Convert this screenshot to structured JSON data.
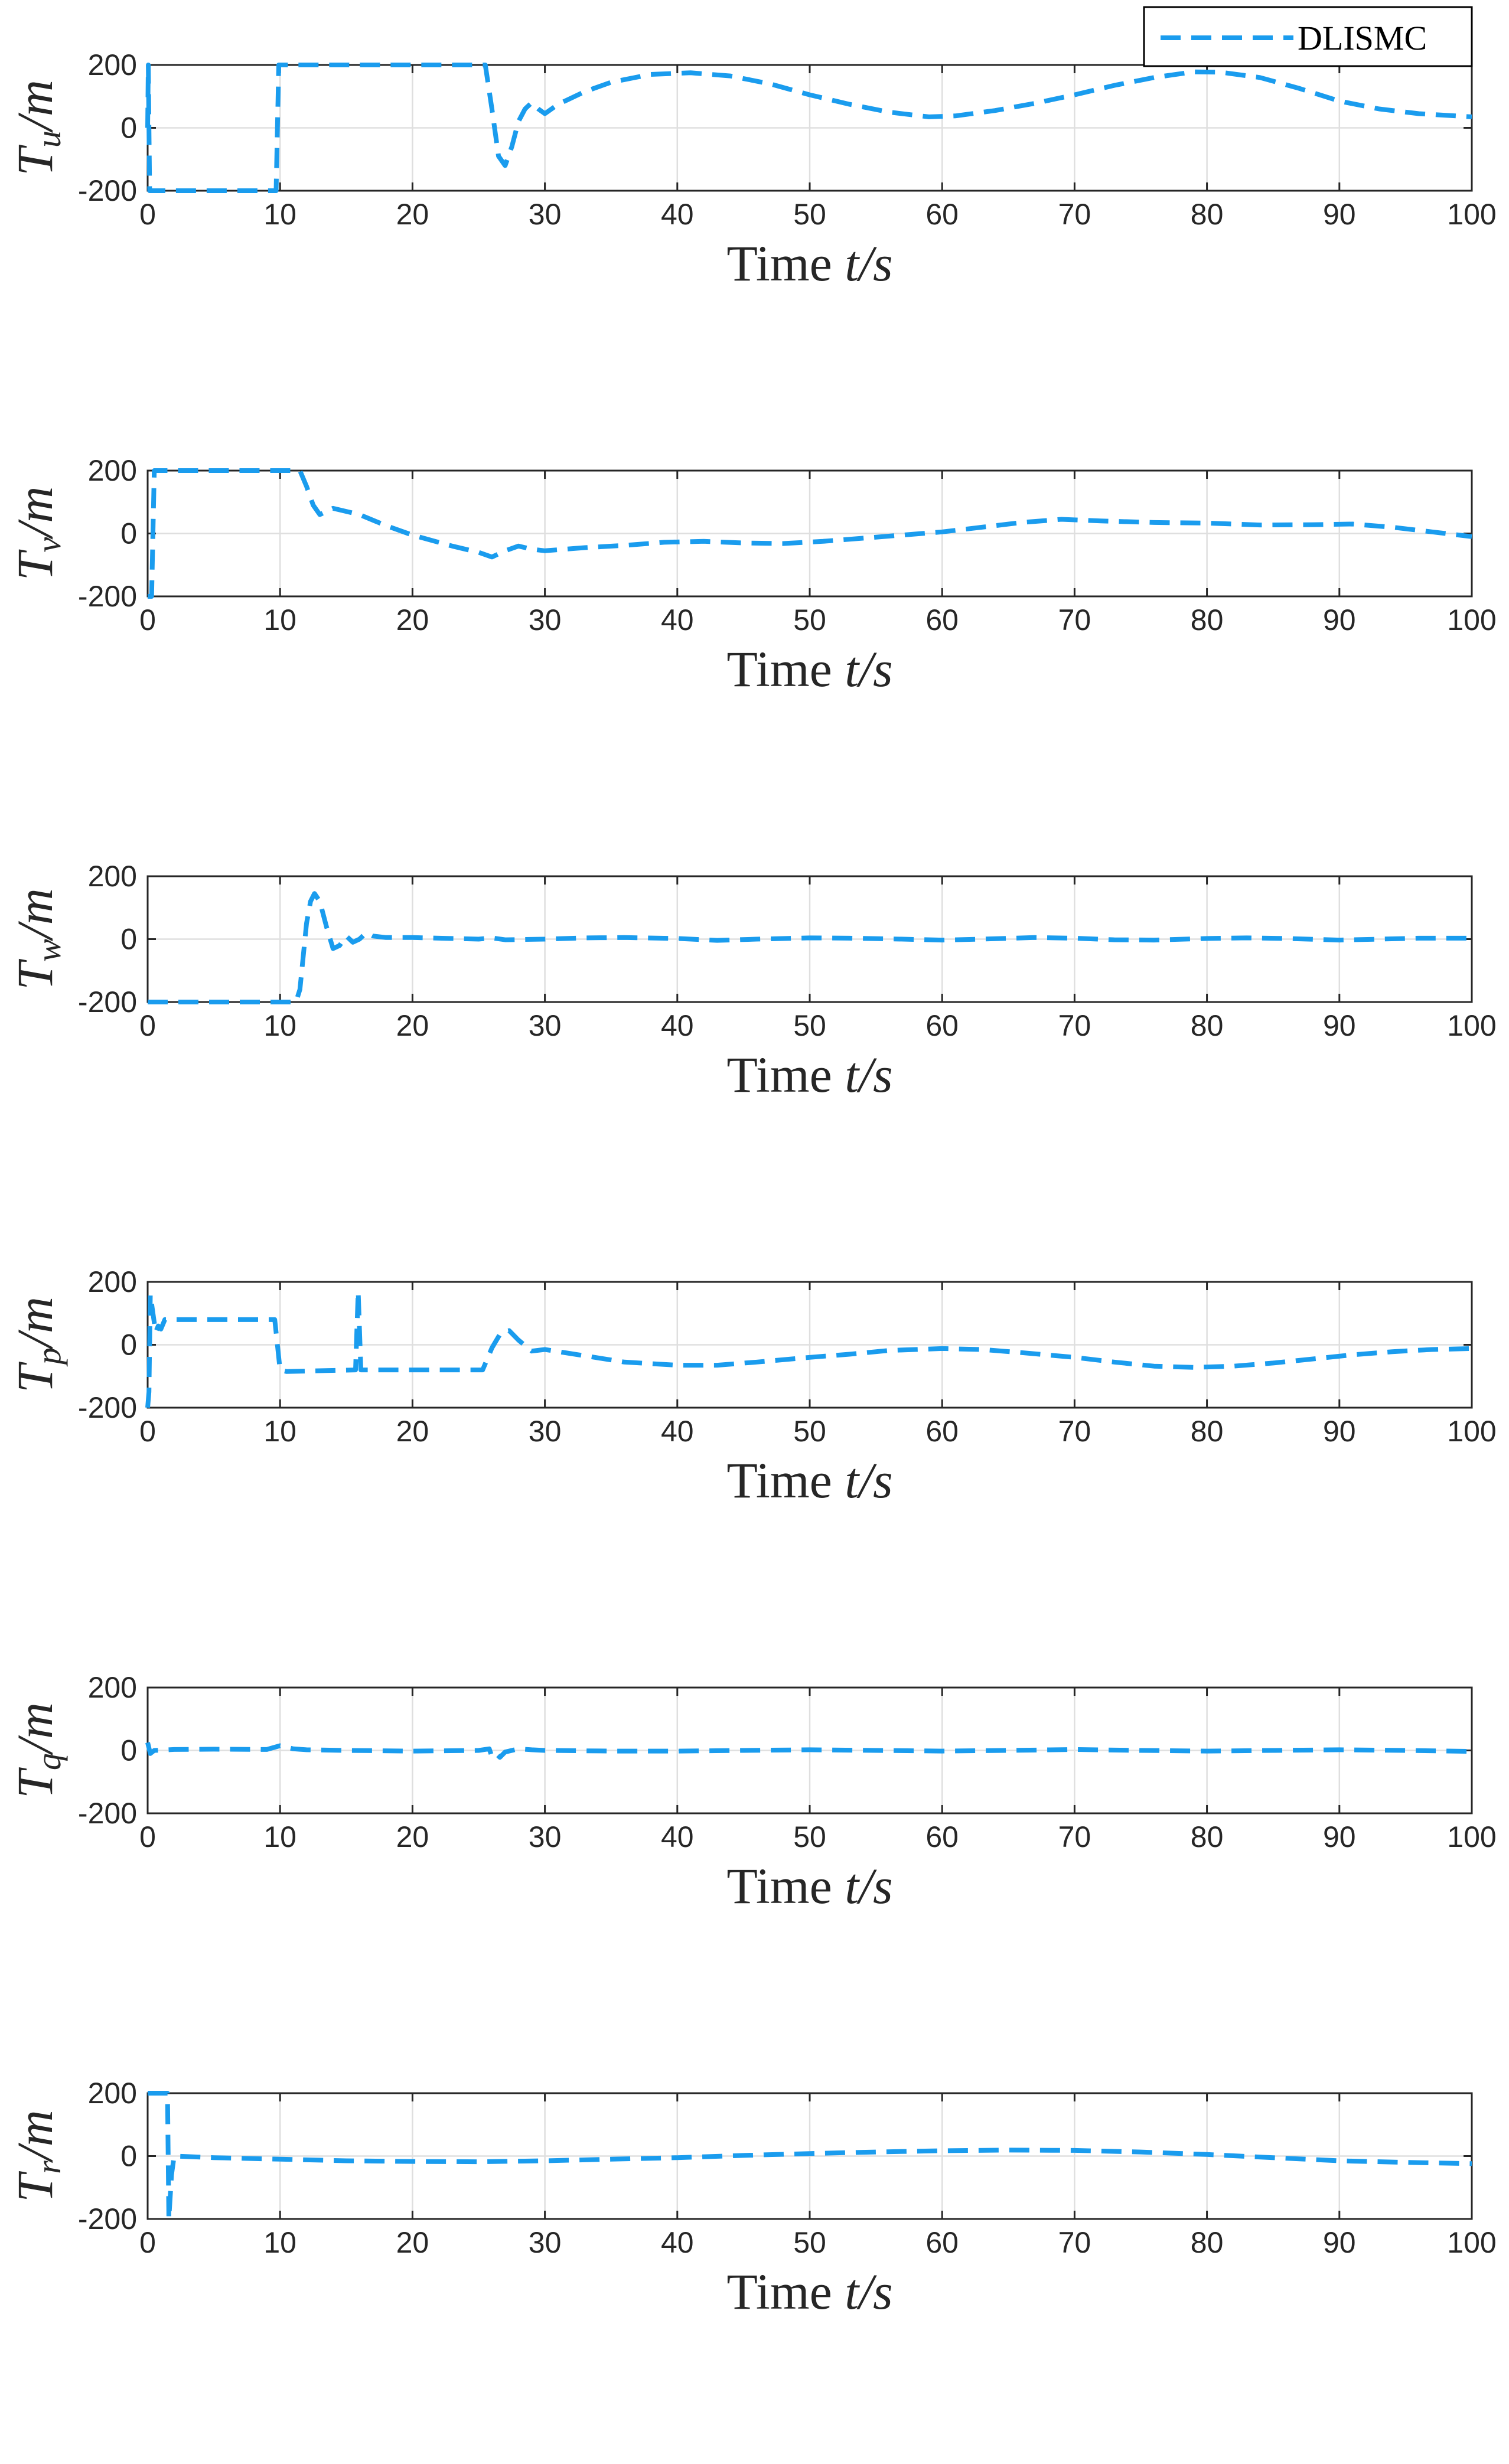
{
  "legend": {
    "label": "DLISMC",
    "location": "top-right"
  },
  "colors": {
    "series": "#1a9cee",
    "axes": "#262626",
    "grid": "#dfdfdf"
  },
  "chart_data": [
    {
      "type": "line",
      "ylabel_symbol": "T",
      "ylabel_sub": "u",
      "ylabel_tail": "/m",
      "xlabel_text": "Time ",
      "xlabel_var": "t/s",
      "xlim": [
        0,
        100
      ],
      "ylim": [
        -200,
        200
      ],
      "xticks": [
        "0",
        "10",
        "20",
        "30",
        "40",
        "50",
        "60",
        "70",
        "80",
        "90",
        "100"
      ],
      "yticks": [
        "200",
        "0",
        "-200"
      ],
      "grid": true,
      "series": [
        {
          "name": "DLISMC",
          "points": [
            [
              0,
              0
            ],
            [
              0.05,
              200
            ],
            [
              0.1,
              0
            ],
            [
              0.15,
              -200
            ],
            [
              9.7,
              -200
            ],
            [
              9.9,
              200
            ],
            [
              25.5,
              200
            ],
            [
              26,
              60
            ],
            [
              26.5,
              -90
            ],
            [
              27,
              -120
            ],
            [
              27.5,
              -60
            ],
            [
              28,
              20
            ],
            [
              28.5,
              60
            ],
            [
              29,
              80
            ],
            [
              29.5,
              60
            ],
            [
              30,
              45
            ],
            [
              31,
              75
            ],
            [
              33,
              115
            ],
            [
              35,
              145
            ],
            [
              38,
              170
            ],
            [
              41,
              175
            ],
            [
              44,
              165
            ],
            [
              47,
              140
            ],
            [
              50,
              105
            ],
            [
              53,
              75
            ],
            [
              56,
              50
            ],
            [
              59,
              35
            ],
            [
              61,
              38
            ],
            [
              64,
              55
            ],
            [
              67,
              78
            ],
            [
              70,
              105
            ],
            [
              73,
              135
            ],
            [
              76,
              160
            ],
            [
              79,
              178
            ],
            [
              81,
              177
            ],
            [
              84,
              160
            ],
            [
              87,
              125
            ],
            [
              90,
              85
            ],
            [
              93,
              60
            ],
            [
              96,
              45
            ],
            [
              100,
              35
            ]
          ]
        }
      ]
    },
    {
      "type": "line",
      "ylabel_symbol": "T",
      "ylabel_sub": "v",
      "ylabel_tail": "/m",
      "xlabel_text": "Time ",
      "xlabel_var": "t/s",
      "xlim": [
        0,
        100
      ],
      "ylim": [
        -200,
        200
      ],
      "xticks": [
        "0",
        "10",
        "20",
        "30",
        "40",
        "50",
        "60",
        "70",
        "80",
        "90",
        "100"
      ],
      "yticks": [
        "200",
        "0",
        "-200"
      ],
      "grid": true,
      "series": [
        {
          "name": "DLISMC",
          "points": [
            [
              0,
              -200
            ],
            [
              0.3,
              -200
            ],
            [
              0.5,
              200
            ],
            [
              11.5,
              200
            ],
            [
              12,
              150
            ],
            [
              12.5,
              90
            ],
            [
              13,
              60
            ],
            [
              14,
              80
            ],
            [
              16,
              60
            ],
            [
              18,
              25
            ],
            [
              20,
              -5
            ],
            [
              23,
              -40
            ],
            [
              25,
              -60
            ],
            [
              26,
              -75
            ],
            [
              27,
              -55
            ],
            [
              28,
              -40
            ],
            [
              29,
              -50
            ],
            [
              30,
              -55
            ],
            [
              33,
              -45
            ],
            [
              36,
              -38
            ],
            [
              39,
              -28
            ],
            [
              42,
              -25
            ],
            [
              45,
              -30
            ],
            [
              48,
              -32
            ],
            [
              51,
              -25
            ],
            [
              54,
              -15
            ],
            [
              57,
              -5
            ],
            [
              60,
              5
            ],
            [
              63,
              20
            ],
            [
              66,
              35
            ],
            [
              69,
              45
            ],
            [
              72,
              40
            ],
            [
              76,
              35
            ],
            [
              80,
              33
            ],
            [
              84,
              27
            ],
            [
              88,
              28
            ],
            [
              91,
              30
            ],
            [
              94,
              20
            ],
            [
              97,
              5
            ],
            [
              100,
              -10
            ]
          ]
        }
      ]
    },
    {
      "type": "line",
      "ylabel_symbol": "T",
      "ylabel_sub": "w",
      "ylabel_tail": "/m",
      "xlabel_text": "Time ",
      "xlabel_var": "t/s",
      "xlim": [
        0,
        100
      ],
      "ylim": [
        -200,
        200
      ],
      "xticks": [
        "0",
        "10",
        "20",
        "30",
        "40",
        "50",
        "60",
        "70",
        "80",
        "90",
        "100"
      ],
      "yticks": [
        "200",
        "0",
        "-200"
      ],
      "grid": true,
      "series": [
        {
          "name": "DLISMC",
          "points": [
            [
              0,
              -200
            ],
            [
              11.2,
              -200
            ],
            [
              11.5,
              -160
            ],
            [
              12,
              50
            ],
            [
              12.3,
              120
            ],
            [
              12.6,
              145
            ],
            [
              13,
              120
            ],
            [
              13.5,
              40
            ],
            [
              14,
              -30
            ],
            [
              14.5,
              -20
            ],
            [
              15,
              10
            ],
            [
              15.5,
              -10
            ],
            [
              16,
              0
            ],
            [
              16.5,
              20
            ],
            [
              17,
              10
            ],
            [
              18,
              5
            ],
            [
              20,
              5
            ],
            [
              23,
              2
            ],
            [
              25,
              0
            ],
            [
              26,
              4
            ],
            [
              27,
              -2
            ],
            [
              30,
              0
            ],
            [
              33,
              4
            ],
            [
              36,
              5
            ],
            [
              40,
              2
            ],
            [
              43,
              -4
            ],
            [
              46,
              0
            ],
            [
              50,
              4
            ],
            [
              53,
              3
            ],
            [
              57,
              0
            ],
            [
              60,
              -3
            ],
            [
              63,
              0
            ],
            [
              67,
              5
            ],
            [
              70,
              3
            ],
            [
              73,
              -2
            ],
            [
              76,
              -3
            ],
            [
              80,
              2
            ],
            [
              83,
              4
            ],
            [
              86,
              2
            ],
            [
              90,
              -3
            ],
            [
              93,
              0
            ],
            [
              96,
              3
            ],
            [
              100,
              3
            ]
          ]
        }
      ]
    },
    {
      "type": "line",
      "ylabel_symbol": "T",
      "ylabel_sub": "p",
      "ylabel_tail": "/m",
      "xlabel_text": "Time ",
      "xlabel_var": "t/s",
      "xlim": [
        0,
        100
      ],
      "ylim": [
        -200,
        200
      ],
      "xticks": [
        "0",
        "10",
        "20",
        "30",
        "40",
        "50",
        "60",
        "70",
        "80",
        "90",
        "100"
      ],
      "yticks": [
        "200",
        "0",
        "-200"
      ],
      "grid": true,
      "series": [
        {
          "name": "DLISMC",
          "points": [
            [
              0,
              -200
            ],
            [
              0.1,
              -150
            ],
            [
              0.2,
              160
            ],
            [
              0.4,
              100
            ],
            [
              0.6,
              40
            ],
            [
              0.8,
              60
            ],
            [
              1,
              50
            ],
            [
              1.3,
              80
            ],
            [
              9.6,
              80
            ],
            [
              10,
              -80
            ],
            [
              10.5,
              -85
            ],
            [
              15.7,
              -80
            ],
            [
              15.9,
              170
            ],
            [
              16.1,
              -80
            ],
            [
              25.3,
              -80
            ],
            [
              26,
              -10
            ],
            [
              26.7,
              40
            ],
            [
              27.3,
              45
            ],
            [
              28,
              15
            ],
            [
              29,
              -20
            ],
            [
              30,
              -15
            ],
            [
              33,
              -35
            ],
            [
              36,
              -55
            ],
            [
              40,
              -65
            ],
            [
              43,
              -65
            ],
            [
              46,
              -55
            ],
            [
              50,
              -40
            ],
            [
              53,
              -30
            ],
            [
              56,
              -18
            ],
            [
              60,
              -12
            ],
            [
              63,
              -15
            ],
            [
              66,
              -25
            ],
            [
              70,
              -40
            ],
            [
              73,
              -55
            ],
            [
              76,
              -68
            ],
            [
              79,
              -72
            ],
            [
              82,
              -68
            ],
            [
              85,
              -58
            ],
            [
              88,
              -45
            ],
            [
              91,
              -32
            ],
            [
              94,
              -22
            ],
            [
              97,
              -15
            ],
            [
              100,
              -12
            ]
          ]
        }
      ]
    },
    {
      "type": "line",
      "ylabel_symbol": "T",
      "ylabel_sub": "q",
      "ylabel_tail": "/m",
      "xlabel_text": "Time ",
      "xlabel_var": "t/s",
      "xlim": [
        0,
        100
      ],
      "ylim": [
        -200,
        200
      ],
      "xticks": [
        "0",
        "10",
        "20",
        "30",
        "40",
        "50",
        "60",
        "70",
        "80",
        "90",
        "100"
      ],
      "yticks": [
        "200",
        "0",
        "-200"
      ],
      "grid": true,
      "series": [
        {
          "name": "DLISMC",
          "points": [
            [
              0,
              25
            ],
            [
              0.2,
              -10
            ],
            [
              0.5,
              0
            ],
            [
              2,
              3
            ],
            [
              5,
              4
            ],
            [
              9,
              3
            ],
            [
              10,
              15
            ],
            [
              11,
              5
            ],
            [
              12,
              2
            ],
            [
              15,
              0
            ],
            [
              20,
              -2
            ],
            [
              25,
              0
            ],
            [
              25.8,
              5
            ],
            [
              26,
              -20
            ],
            [
              26.3,
              -10
            ],
            [
              26.6,
              -22
            ],
            [
              27,
              -5
            ],
            [
              28,
              5
            ],
            [
              29,
              2
            ],
            [
              30,
              0
            ],
            [
              35,
              -2
            ],
            [
              40,
              -2
            ],
            [
              45,
              0
            ],
            [
              50,
              2
            ],
            [
              55,
              0
            ],
            [
              60,
              -2
            ],
            [
              65,
              0
            ],
            [
              70,
              3
            ],
            [
              75,
              0
            ],
            [
              80,
              -2
            ],
            [
              85,
              0
            ],
            [
              90,
              2
            ],
            [
              95,
              0
            ],
            [
              100,
              -3
            ]
          ]
        }
      ]
    },
    {
      "type": "line",
      "ylabel_symbol": "T",
      "ylabel_sub": "r",
      "ylabel_tail": "/m",
      "xlabel_text": "Time ",
      "xlabel_var": "t/s",
      "xlim": [
        0,
        100
      ],
      "ylim": [
        -200,
        200
      ],
      "xticks": [
        "0",
        "10",
        "20",
        "30",
        "40",
        "50",
        "60",
        "70",
        "80",
        "90",
        "100"
      ],
      "yticks": [
        "200",
        "0",
        "-200"
      ],
      "grid": true,
      "series": [
        {
          "name": "DLISMC",
          "points": [
            [
              0,
              200
            ],
            [
              1.5,
              200
            ],
            [
              1.6,
              -200
            ],
            [
              1.8,
              -60
            ],
            [
              2,
              0
            ],
            [
              5,
              -5
            ],
            [
              10,
              -10
            ],
            [
              15,
              -15
            ],
            [
              20,
              -17
            ],
            [
              25,
              -18
            ],
            [
              30,
              -15
            ],
            [
              35,
              -10
            ],
            [
              40,
              -5
            ],
            [
              45,
              2
            ],
            [
              50,
              8
            ],
            [
              55,
              13
            ],
            [
              60,
              17
            ],
            [
              65,
              19
            ],
            [
              70,
              18
            ],
            [
              75,
              13
            ],
            [
              80,
              5
            ],
            [
              85,
              -5
            ],
            [
              90,
              -15
            ],
            [
              95,
              -20
            ],
            [
              100,
              -24
            ]
          ]
        }
      ]
    }
  ]
}
